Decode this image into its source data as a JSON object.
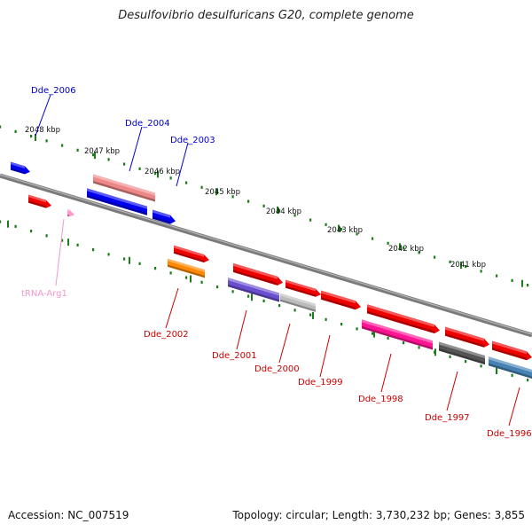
{
  "title": "Desulfovibrio desulfuricans G20, complete genome",
  "footer": {
    "accession": "Accession: NC_007519",
    "summary": "Topology: circular; Length: 3,730,232 bp; Genes: 3,855"
  },
  "scale": {
    "labels": [
      "2048 kbp",
      "2047 kbp",
      "2046 kbp",
      "2045 kbp",
      "2044 kbp",
      "2043 kbp",
      "2042 kbp",
      "2041 kbp"
    ]
  },
  "colors": {
    "backbone": "#7a7a7a",
    "tick": "#1a7d1a",
    "label_top": "#0000cc",
    "label_bottom": "#cc0000",
    "label_trna": "#ee99cc"
  },
  "features": {
    "upper": [
      {
        "label": "Dde_2006",
        "color": "#0000ee",
        "arrow": "right"
      },
      {
        "label": "Dde_2004",
        "color": "#ee8888",
        "arrow": "none"
      },
      {
        "label": "",
        "color": "#0000ee",
        "arrow": "none"
      },
      {
        "label": "Dde_2003",
        "color": "#0000ee",
        "arrow": "right"
      }
    ],
    "lower": [
      {
        "label": "",
        "color": "#ee0000",
        "arrow": "right"
      },
      {
        "label": "tRNA-Arg1",
        "color": "#ff99cc",
        "arrow": "right"
      },
      {
        "label": "",
        "color": "#ee0000",
        "arrow": "right"
      },
      {
        "label": "Dde_2002",
        "color": "#ff8800",
        "arrow": "none"
      },
      {
        "label": "",
        "color": "#ee0000",
        "arrow": "right"
      },
      {
        "label": "Dde_2001",
        "color": "#6a4fcf",
        "arrow": "none"
      },
      {
        "label": "",
        "color": "#ee0000",
        "arrow": "right"
      },
      {
        "label": "Dde_2000",
        "color": "#bbbbbb",
        "arrow": "none"
      },
      {
        "label": "Dde_1999",
        "color": "#ee0000",
        "arrow": "right"
      },
      {
        "label": "",
        "color": "#ee0000",
        "arrow": "right"
      },
      {
        "label": "Dde_1998",
        "color": "#ff1493",
        "arrow": "none"
      },
      {
        "label": "",
        "color": "#ee0000",
        "arrow": "right"
      },
      {
        "label": "Dde_1997",
        "color": "#555555",
        "arrow": "none"
      },
      {
        "label": "",
        "color": "#ee0000",
        "arrow": "right"
      },
      {
        "label": "Dde_1996",
        "color": "#4682b4",
        "arrow": "none"
      }
    ]
  }
}
